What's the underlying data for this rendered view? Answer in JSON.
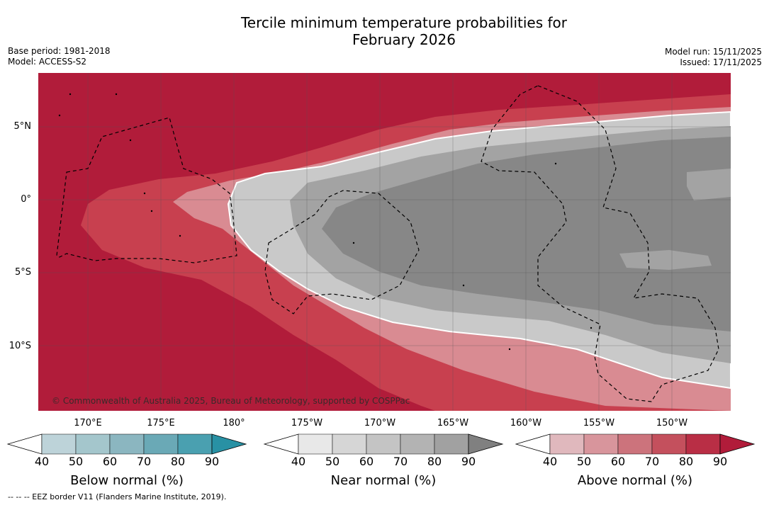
{
  "title_line1": "Tercile minimum temperature probabilities for",
  "title_line2": "February 2026",
  "meta_left": {
    "base_period": "Base period: 1981-2018",
    "model": "Model: ACCESS-S2"
  },
  "meta_right": {
    "model_run": "Model run: 15/11/2025",
    "issued": "Issued: 17/11/2025"
  },
  "map": {
    "lat_labels": [
      "5°N",
      "0°",
      "5°S",
      "10°S"
    ],
    "lon_labels": [
      "170°E",
      "175°E",
      "180°",
      "175°W",
      "170°W",
      "165°W",
      "160°W",
      "155°W",
      "150°W"
    ],
    "copyright": "© Commonwealth of Australia 2025, Bureau of Meteorology, supported by COSPPac",
    "colors": {
      "above_dark": "#b11c3a",
      "above_mid": "#c8404f",
      "above_light": "#d98b92",
      "near_dark": "#878787",
      "near_mid": "#a3a3a3",
      "near_light": "#c9c9c9"
    }
  },
  "colorbars": [
    {
      "title": "Below normal (%)",
      "ticks": [
        "40",
        "50",
        "60",
        "70",
        "80",
        "90"
      ],
      "colors": [
        "#bdd3d9",
        "#a4c6cc",
        "#8bb6c0",
        "#6aa9b6",
        "#4aa0b0",
        "#2891a4"
      ]
    },
    {
      "title": "Near normal (%)",
      "ticks": [
        "40",
        "50",
        "60",
        "70",
        "80",
        "90"
      ],
      "colors": [
        "#e8e8e8",
        "#d6d6d6",
        "#c4c4c4",
        "#b3b3b3",
        "#a1a1a1",
        "#808080"
      ]
    },
    {
      "title": "Above normal (%)",
      "ticks": [
        "40",
        "50",
        "60",
        "70",
        "80",
        "90"
      ],
      "colors": [
        "#e0b8bd",
        "#d8959c",
        "#cc737c",
        "#c4505d",
        "#b92e45",
        "#b11c3a"
      ]
    }
  ],
  "footnote": "--  --  -- EEZ border V11 (Flanders Marine Institute, 2019)."
}
